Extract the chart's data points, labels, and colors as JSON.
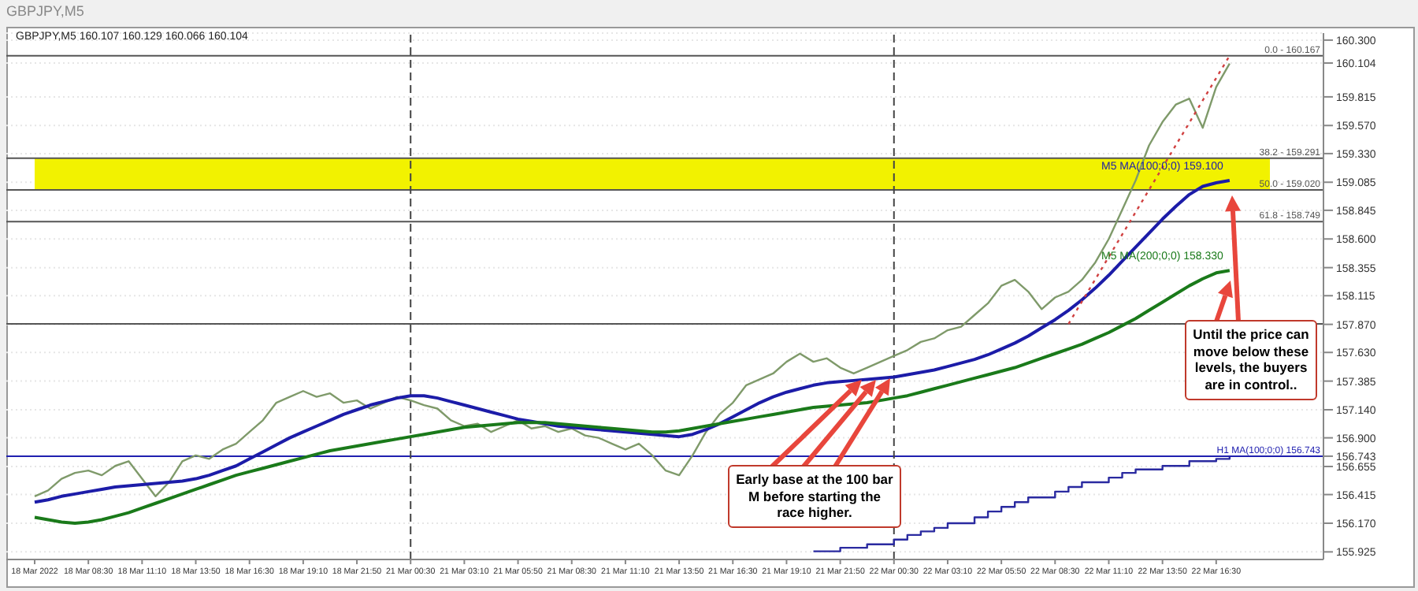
{
  "chart_data": {
    "type": "line",
    "title": "GBPJPY,M5",
    "subtitle": "GBPJPY,M5  160.107 160.129 160.066 160.104",
    "categories": [
      "18 Mar 2022",
      null,
      null,
      null,
      "18 Mar 08:30",
      null,
      null,
      null,
      "18 Mar 11:10",
      null,
      null,
      null,
      "18 Mar 13:50",
      null,
      null,
      null,
      "18 Mar 16:30",
      null,
      null,
      null,
      "18 Mar 19:10",
      null,
      null,
      null,
      "18 Mar 21:50",
      null,
      null,
      null,
      "21 Mar 00:30",
      null,
      null,
      null,
      "21 Mar 03:10",
      null,
      null,
      null,
      "21 Mar 05:50",
      null,
      null,
      null,
      "21 Mar 08:30",
      null,
      null,
      null,
      "21 Mar 11:10",
      null,
      null,
      null,
      "21 Mar 13:50",
      null,
      null,
      null,
      "21 Mar 16:30",
      null,
      null,
      null,
      "21 Mar 19:10",
      null,
      null,
      null,
      "21 Mar 21:50",
      null,
      null,
      null,
      "22 Mar 00:30",
      null,
      null,
      null,
      "22 Mar 03:10",
      null,
      null,
      null,
      "22 Mar 05:50",
      null,
      null,
      null,
      "22 Mar 08:30",
      null,
      null,
      null,
      "22 Mar 11:10",
      null,
      null,
      null,
      "22 Mar 13:50",
      null,
      null,
      null,
      "22 Mar 16:30",
      null,
      null,
      null,
      null
    ],
    "series": [
      {
        "color": "#7f9a6a",
        "values": [
          156.4,
          156.45,
          156.55,
          156.6,
          156.62,
          156.58,
          156.66,
          156.7,
          156.55,
          156.4,
          156.52,
          156.7,
          156.75,
          156.72,
          156.8,
          156.85,
          156.95,
          157.05,
          157.2,
          157.25,
          157.3,
          157.25,
          157.28,
          157.2,
          157.22,
          157.15,
          157.2,
          157.25,
          157.22,
          157.18,
          157.15,
          157.05,
          157.0,
          157.02,
          156.95,
          157.0,
          157.05,
          156.98,
          157.0,
          156.95,
          156.98,
          156.92,
          156.9,
          156.85,
          156.8,
          156.85,
          156.75,
          156.62,
          156.58,
          156.75,
          156.95,
          157.1,
          157.2,
          157.35,
          157.4,
          157.45,
          157.55,
          157.62,
          157.55,
          157.58,
          157.5,
          157.45,
          157.5,
          157.55,
          157.6,
          157.65,
          157.72,
          157.75,
          157.82,
          157.85,
          157.95,
          158.05,
          158.2,
          158.25,
          158.15,
          158.0,
          158.1,
          158.15,
          158.25,
          158.4,
          158.6,
          158.85,
          159.1,
          159.4,
          159.6,
          159.75,
          159.8,
          159.55,
          159.9,
          160.1,
          null,
          null,
          null
        ]
      },
      {
        "name": "M5 MA(100;0;0) 159.100",
        "color": "#1c1ca8",
        "values": [
          156.35,
          156.37,
          156.4,
          156.42,
          156.44,
          156.46,
          156.48,
          156.49,
          156.5,
          156.51,
          156.52,
          156.53,
          156.55,
          156.58,
          156.62,
          156.66,
          156.72,
          156.78,
          156.84,
          156.9,
          156.95,
          157.0,
          157.05,
          157.1,
          157.14,
          157.18,
          157.21,
          157.24,
          157.26,
          157.26,
          157.24,
          157.21,
          157.18,
          157.15,
          157.12,
          157.09,
          157.06,
          157.04,
          157.02,
          157.0,
          156.99,
          156.98,
          156.97,
          156.96,
          156.95,
          156.94,
          156.93,
          156.92,
          156.91,
          156.93,
          156.97,
          157.02,
          157.08,
          157.14,
          157.2,
          157.25,
          157.29,
          157.32,
          157.35,
          157.37,
          157.38,
          157.39,
          157.4,
          157.41,
          157.42,
          157.44,
          157.46,
          157.48,
          157.51,
          157.54,
          157.57,
          157.61,
          157.66,
          157.71,
          157.77,
          157.84,
          157.91,
          157.99,
          158.08,
          158.18,
          158.29,
          158.41,
          158.53,
          158.65,
          158.77,
          158.88,
          158.98,
          159.05,
          159.08,
          159.1,
          null,
          null,
          null
        ]
      },
      {
        "name": "M5 MA(200;0;0) 158.330",
        "color": "#1a7a1a",
        "values": [
          156.22,
          156.2,
          156.18,
          156.17,
          156.18,
          156.2,
          156.23,
          156.26,
          156.3,
          156.34,
          156.38,
          156.42,
          156.46,
          156.5,
          156.54,
          156.58,
          156.61,
          156.64,
          156.67,
          156.7,
          156.73,
          156.76,
          156.79,
          156.81,
          156.83,
          156.85,
          156.87,
          156.89,
          156.91,
          156.93,
          156.95,
          156.97,
          156.99,
          157.0,
          157.01,
          157.02,
          157.03,
          157.03,
          157.03,
          157.02,
          157.01,
          157.0,
          156.99,
          156.98,
          156.97,
          156.96,
          156.95,
          156.95,
          156.96,
          156.98,
          157.0,
          157.02,
          157.04,
          157.06,
          157.08,
          157.1,
          157.12,
          157.14,
          157.16,
          157.17,
          157.18,
          157.19,
          157.2,
          157.22,
          157.24,
          157.26,
          157.29,
          157.32,
          157.35,
          157.38,
          157.41,
          157.44,
          157.47,
          157.5,
          157.54,
          157.58,
          157.62,
          157.66,
          157.7,
          157.75,
          157.8,
          157.86,
          157.92,
          157.99,
          158.06,
          158.13,
          158.2,
          158.26,
          158.31,
          158.33,
          null,
          null,
          null
        ]
      },
      {
        "type": "step",
        "color": "#2a2aa0",
        "values": [
          null,
          null,
          null,
          null,
          null,
          null,
          null,
          null,
          null,
          null,
          null,
          null,
          null,
          null,
          null,
          null,
          null,
          null,
          null,
          null,
          null,
          null,
          null,
          null,
          null,
          null,
          null,
          null,
          null,
          null,
          null,
          null,
          null,
          null,
          null,
          null,
          null,
          null,
          null,
          null,
          null,
          null,
          null,
          null,
          null,
          null,
          null,
          null,
          null,
          null,
          null,
          null,
          null,
          null,
          null,
          null,
          null,
          null,
          155.93,
          155.93,
          155.96,
          155.96,
          155.99,
          155.99,
          156.03,
          156.07,
          156.1,
          156.13,
          156.17,
          156.17,
          156.22,
          156.27,
          156.31,
          156.35,
          156.39,
          156.39,
          156.44,
          156.48,
          156.52,
          156.52,
          156.56,
          156.6,
          156.63,
          156.63,
          156.66,
          156.66,
          156.7,
          156.7,
          156.72,
          156.74,
          null,
          null,
          null
        ]
      },
      {
        "color": "#d04040",
        "line_style": "dotted",
        "values": [
          null,
          null,
          null,
          null,
          null,
          null,
          null,
          null,
          null,
          null,
          null,
          null,
          null,
          null,
          null,
          null,
          null,
          null,
          null,
          null,
          null,
          null,
          null,
          null,
          null,
          null,
          null,
          null,
          null,
          null,
          null,
          null,
          null,
          null,
          null,
          null,
          null,
          null,
          null,
          null,
          null,
          null,
          null,
          null,
          null,
          null,
          null,
          null,
          null,
          null,
          null,
          null,
          null,
          null,
          null,
          null,
          null,
          null,
          null,
          null,
          null,
          null,
          null,
          null,
          null,
          null,
          null,
          null,
          null,
          null,
          null,
          null,
          null,
          null,
          null,
          null,
          null,
          157.874,
          null,
          null,
          null,
          null,
          null,
          null,
          null,
          null,
          null,
          null,
          null,
          160.167,
          null,
          null,
          null
        ]
      }
    ],
    "ylim": [
      155.86,
      160.36
    ],
    "yticks": [
      {
        "value": 160.3,
        "label": "160.300"
      },
      {
        "value": 160.104,
        "label": "160.104"
      },
      {
        "value": 159.815,
        "label": "159.815"
      },
      {
        "value": 159.57,
        "label": "159.570"
      },
      {
        "value": 159.33,
        "label": "159.330"
      },
      {
        "value": 159.085,
        "label": "159.085"
      },
      {
        "value": 158.845,
        "label": "158.845"
      },
      {
        "value": 158.6,
        "label": "158.600"
      },
      {
        "value": 158.355,
        "label": "158.355"
      },
      {
        "value": 158.115,
        "label": "158.115"
      },
      {
        "value": 157.87,
        "label": "157.870"
      },
      {
        "value": 157.63,
        "label": "157.630"
      },
      {
        "value": 157.385,
        "label": "157.385"
      },
      {
        "value": 157.14,
        "label": "157.140"
      },
      {
        "value": 156.9,
        "label": "156.900"
      },
      {
        "value": 156.743,
        "label": "156.743"
      },
      {
        "value": 156.655,
        "label": "156.655"
      },
      {
        "value": 156.415,
        "label": "156.415"
      },
      {
        "value": 156.17,
        "label": "156.170"
      },
      {
        "value": 155.925,
        "label": "155.925"
      }
    ],
    "grid": "y",
    "ref_lines": [
      {
        "axis": "y",
        "value": 160.167,
        "color": "#555555"
      },
      {
        "axis": "y",
        "value": 159.291,
        "color": "#555555"
      },
      {
        "axis": "y",
        "value": 159.02,
        "color": "#555555"
      },
      {
        "axis": "y",
        "value": 158.749,
        "color": "#555555"
      },
      {
        "axis": "y",
        "value": 157.874,
        "color": "#555555"
      },
      {
        "axis": "y",
        "value": 156.743,
        "label": "H1 MA(100;0;0) 156.743",
        "color": "#2020b0"
      },
      {
        "axis": "x",
        "value": "21 Mar 00:30",
        "color": "#444444",
        "line_style": "dashed"
      },
      {
        "axis": "x",
        "value": "22 Mar 00:30",
        "color": "#444444",
        "line_style": "dashed"
      }
    ],
    "bands": [
      {
        "axis": "y",
        "from": 159.02,
        "to": 159.291,
        "color": "#f2f200"
      }
    ],
    "annotations": [
      "Early base at the 100 bar M before starting the race higher.",
      "Until the price can move below these levels, the buyers are in control..",
      {
        "text": "0.0 - 160.167",
        "y": 160.167
      },
      {
        "text": "38.2 - 159.291",
        "y": 159.291
      },
      {
        "text": "50.0 - 159.020",
        "y": 159.02
      },
      {
        "text": "61.8 - 158.749",
        "y": 158.749
      }
    ]
  }
}
